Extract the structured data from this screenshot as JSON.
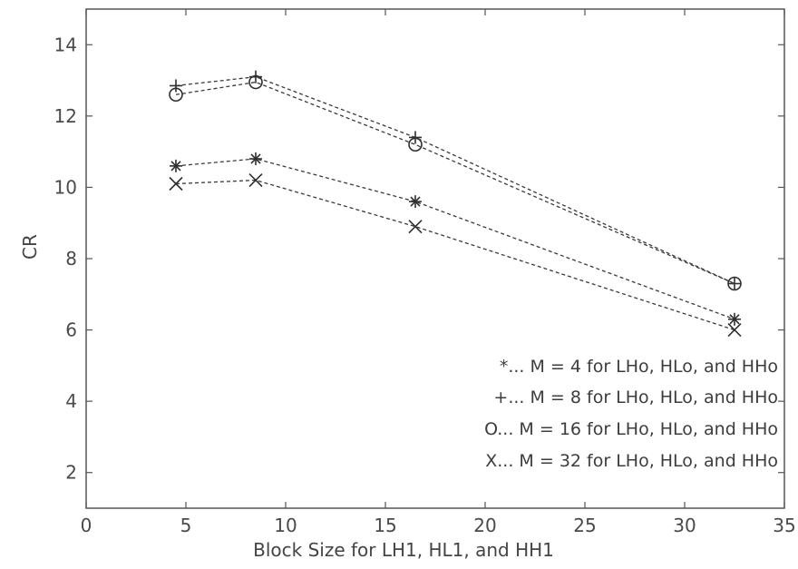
{
  "chart_data": {
    "type": "line",
    "xlabel": "Block Size for LH1, HL1, and HH1",
    "ylabel": "CR",
    "xlim": [
      0,
      35
    ],
    "ylim": [
      1,
      15
    ],
    "xticks": [
      "0",
      "5",
      "10",
      "15",
      "20",
      "25",
      "30",
      "35"
    ],
    "yticks": [
      "2",
      "4",
      "6",
      "8",
      "10",
      "12",
      "14"
    ],
    "x": [
      4.5,
      8.5,
      16.5,
      32.5
    ],
    "series": [
      {
        "name": "*... M = 4 for LHo, HLo, and HHo",
        "marker": "*",
        "values": [
          10.6,
          10.8,
          9.6,
          6.3
        ]
      },
      {
        "name": "+... M = 8 for LHo, HLo, and HHo",
        "marker": "+",
        "values": [
          12.85,
          13.1,
          11.4,
          7.3
        ]
      },
      {
        "name": "O... M = 16 for LHo, HLo, and HHo",
        "marker": "o",
        "values": [
          12.6,
          12.95,
          11.2,
          7.3
        ]
      },
      {
        "name": "X... M = 32 for LHo, HLo, and HHo",
        "marker": "x",
        "values": [
          10.1,
          10.2,
          8.9,
          6.0
        ]
      }
    ],
    "legend_position": "bottom-right",
    "grid": false,
    "line_style": "dashed",
    "line_color": "#3a3a3a"
  }
}
